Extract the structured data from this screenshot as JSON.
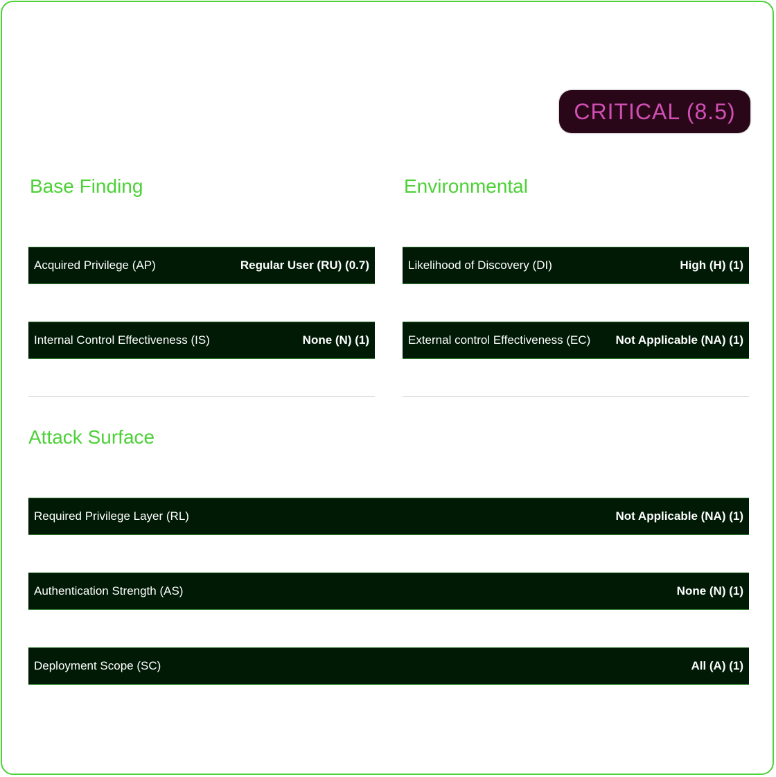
{
  "severity_badge": {
    "label": "CRITICAL (8.5)",
    "color": "#d14fb5",
    "background": "#2a0718"
  },
  "sections": {
    "base": {
      "title": "Base Finding",
      "rows": [
        {
          "label": "Acquired Privilege (AP)",
          "value": "Regular User (RU) (0.7)"
        },
        {
          "label": "Internal Control Effectiveness (IS)",
          "value": "None  (N) (1)"
        }
      ]
    },
    "environmental": {
      "title": "Environmental",
      "rows": [
        {
          "label": "Likelihood of Discovery (DI)",
          "value": "High (H) (1)"
        },
        {
          "label": "External control Effectiveness (EC)",
          "value": "Not Applicable (NA) (1)"
        }
      ]
    },
    "attack_surface": {
      "title": "Attack Surface",
      "rows": [
        {
          "label": "Required Privilege Layer (RL)",
          "value": "Not Applicable (NA) (1)"
        },
        {
          "label": "Authentication Strength (AS)",
          "value": "None  (N) (1)"
        },
        {
          "label": "Deployment Scope (SC)",
          "value": "All  (A) (1)"
        }
      ]
    }
  },
  "colors": {
    "accent": "#4cd137",
    "row_background": "#001a05"
  }
}
